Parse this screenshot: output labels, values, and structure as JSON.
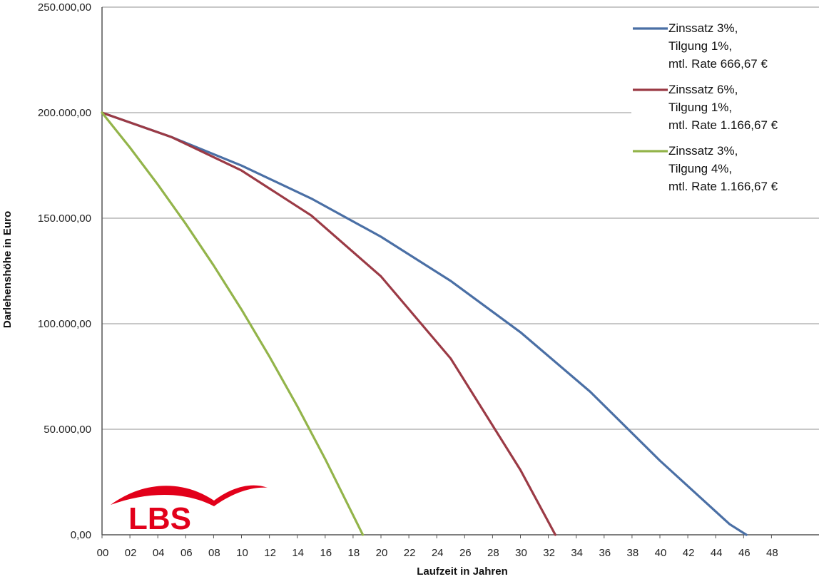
{
  "chart_data": {
    "type": "line",
    "xlabel": "Laufzeit in Jahren",
    "ylabel": "Darlehenshöhe in Euro",
    "xlim": [
      0,
      49
    ],
    "ylim": [
      0,
      250000
    ],
    "x_ticks": [
      "00",
      "02",
      "04",
      "06",
      "08",
      "10",
      "12",
      "14",
      "16",
      "18",
      "20",
      "22",
      "24",
      "26",
      "28",
      "30",
      "32",
      "34",
      "36",
      "38",
      "40",
      "42",
      "44",
      "46",
      "48"
    ],
    "y_ticks": [
      "0,00",
      "50.000,00",
      "100.000,00",
      "150.000,00",
      "200.000,00",
      "250.000,00"
    ],
    "grid": "horizontal",
    "legend_position": "top-right",
    "series": [
      {
        "name_lines": [
          "Zinssatz 3%,",
          "Tilgung 1%,",
          "mtl. Rate 666,67 €"
        ],
        "color": "#4a6fa5",
        "x": [
          0,
          5,
          10,
          15,
          20,
          25,
          30,
          35,
          40,
          45,
          46.2
        ],
        "y": [
          200000,
          188392,
          174924,
          159316,
          141227,
          120256,
          95963,
          67783,
          35130,
          4994,
          0
        ]
      },
      {
        "name_lines": [
          "Zinssatz 6%,",
          "Tilgung 1%,",
          "mtl. Rate 1.166,67 €"
        ],
        "color": "#9b3a45",
        "x": [
          0,
          5,
          10,
          15,
          20,
          25,
          30,
          32.5
        ],
        "y": [
          200000,
          188372,
          172612,
          151268,
          122421,
          83464,
          30726,
          0
        ]
      },
      {
        "name_lines": [
          "Zinssatz 3%,",
          "Tilgung 4%,",
          "mtl. Rate 1.166,67 €"
        ],
        "color": "#93b44a",
        "x": [
          0,
          2,
          4,
          6,
          8,
          10,
          12,
          14,
          16,
          18,
          18.7
        ],
        "y": [
          200000,
          183488,
          165954,
          147361,
          127637,
          106712,
          84507,
          60934,
          35912,
          9339,
          0
        ]
      }
    ]
  },
  "logo": {
    "text": "LBS",
    "color": "#e2001a"
  }
}
